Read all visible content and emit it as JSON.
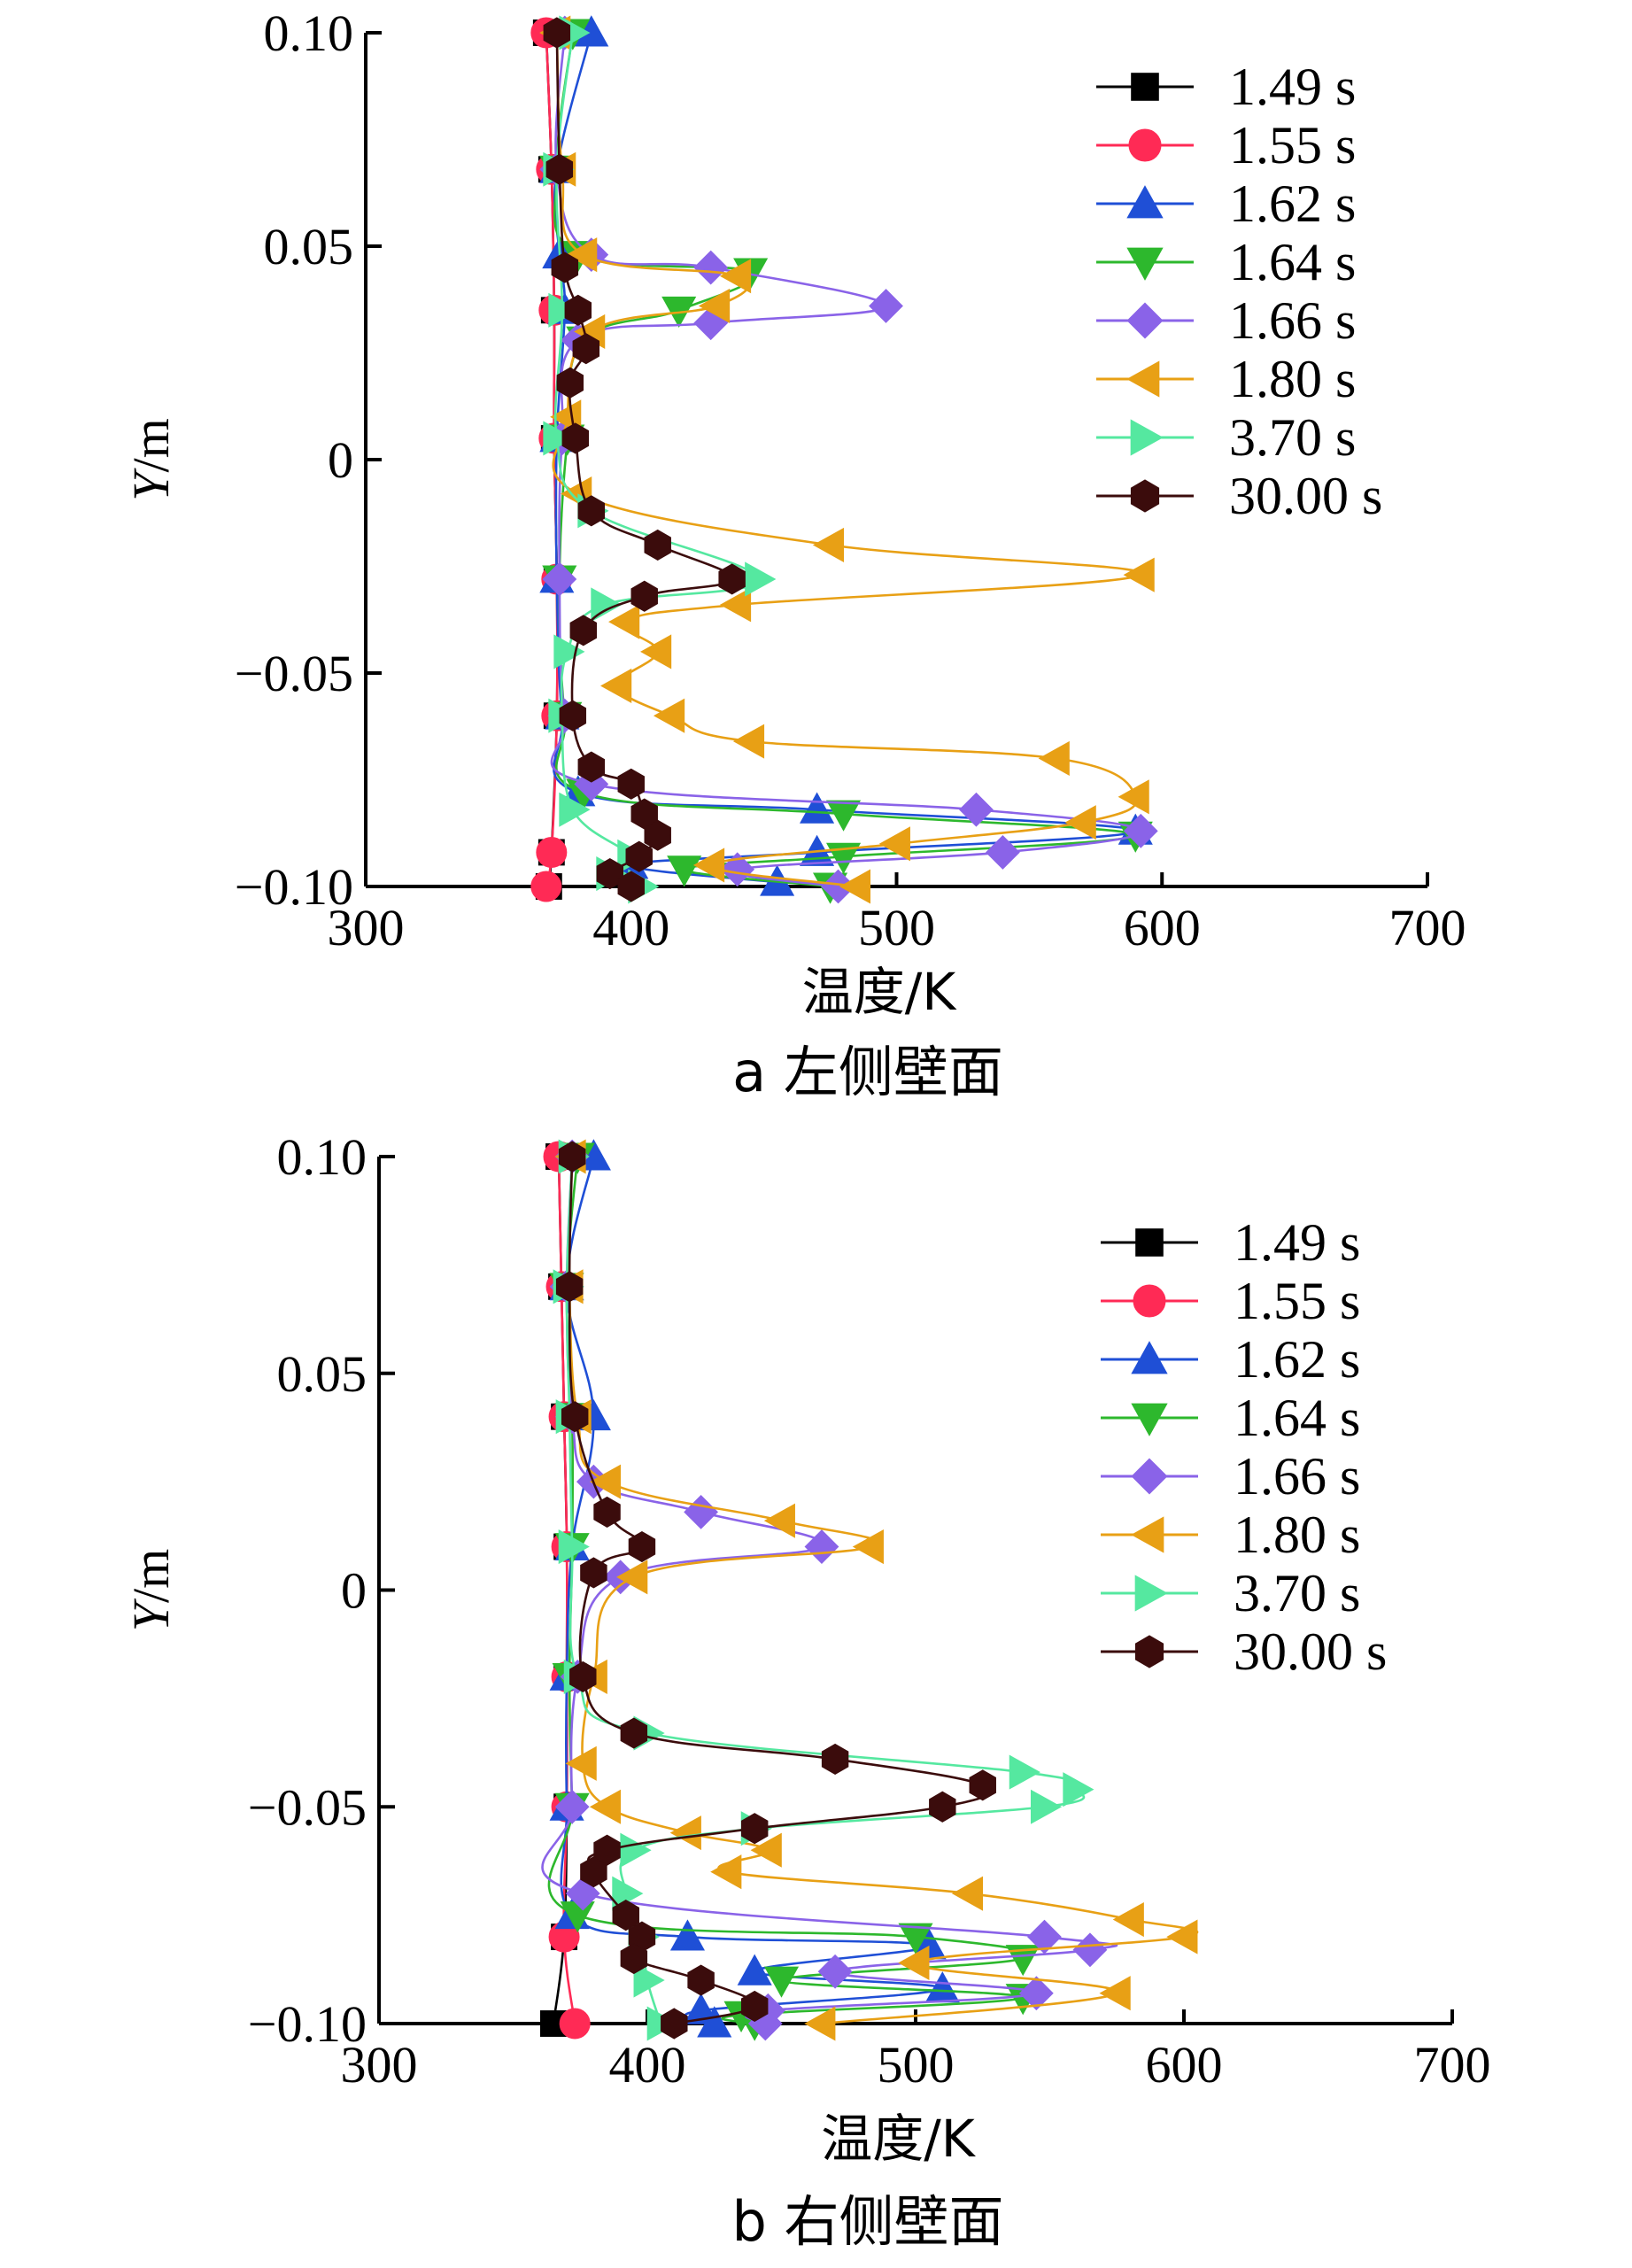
{
  "chart_data": [
    {
      "type": "line",
      "caption": "a  左侧壁面",
      "xlabel": "温度/K",
      "ylabel": "Y/m",
      "xlim": [
        300,
        700
      ],
      "ylim": [
        -0.1,
        0.1
      ],
      "xticks": [
        "300",
        "400",
        "500",
        "600",
        "700"
      ],
      "yticks": [
        "−0.10",
        "−0.05",
        "0",
        "0.05",
        "0.10"
      ],
      "legend_position": "top-right",
      "series": [
        {
          "name": "1.49 s",
          "color": "#000000",
          "marker": "square",
          "points": [
            [
              368,
              0.1
            ],
            [
              370,
              0.068
            ],
            [
              371,
              0.035
            ],
            [
              371,
              0.005
            ],
            [
              372,
              -0.028
            ],
            [
              372,
              -0.06
            ],
            [
              370,
              -0.092
            ],
            [
              369,
              -0.1
            ]
          ]
        },
        {
          "name": "1.55 s",
          "color": "#ff2a55",
          "marker": "circle",
          "points": [
            [
              368,
              0.1
            ],
            [
              370,
              0.068
            ],
            [
              371,
              0.035
            ],
            [
              371,
              0.005
            ],
            [
              372,
              -0.028
            ],
            [
              372,
              -0.06
            ],
            [
              370,
              -0.092
            ],
            [
              368,
              -0.1
            ]
          ]
        },
        {
          "name": "1.62 s",
          "color": "#1f4fd6",
          "marker": "triangle-up",
          "points": [
            [
              385,
              0.1
            ],
            [
              372,
              0.068
            ],
            [
              373,
              0.048
            ],
            [
              375,
              0.035
            ],
            [
              372,
              0.005
            ],
            [
              372,
              -0.028
            ],
            [
              374,
              -0.06
            ],
            [
              380,
              -0.078
            ],
            [
              470,
              -0.082
            ],
            [
              590,
              -0.087
            ],
            [
              470,
              -0.092
            ],
            [
              400,
              -0.095
            ],
            [
              455,
              -0.099
            ]
          ]
        },
        {
          "name": "1.64 s",
          "color": "#2db82d",
          "marker": "triangle-down",
          "points": [
            [
              378,
              0.1
            ],
            [
              372,
              0.068
            ],
            [
              380,
              0.048
            ],
            [
              445,
              0.044
            ],
            [
              418,
              0.035
            ],
            [
              382,
              0.028
            ],
            [
              376,
              0.005
            ],
            [
              373,
              -0.028
            ],
            [
              375,
              -0.06
            ],
            [
              382,
              -0.078
            ],
            [
              480,
              -0.083
            ],
            [
              590,
              -0.088
            ],
            [
              480,
              -0.093
            ],
            [
              420,
              -0.096
            ],
            [
              475,
              -0.1
            ]
          ]
        },
        {
          "name": "1.66 s",
          "color": "#8a63e8",
          "marker": "diamond",
          "points": [
            [
              375,
              0.1
            ],
            [
              372,
              0.068
            ],
            [
              385,
              0.048
            ],
            [
              430,
              0.045
            ],
            [
              496,
              0.036
            ],
            [
              430,
              0.032
            ],
            [
              380,
              0.028
            ],
            [
              374,
              0.005
            ],
            [
              373,
              -0.028
            ],
            [
              375,
              -0.06
            ],
            [
              385,
              -0.076
            ],
            [
              530,
              -0.082
            ],
            [
              592,
              -0.087
            ],
            [
              540,
              -0.092
            ],
            [
              440,
              -0.096
            ],
            [
              478,
              -0.1
            ]
          ]
        },
        {
          "name": "1.80 s",
          "color": "#e8a015",
          "marker": "triangle-left",
          "points": [
            [
              372,
              0.1
            ],
            [
              374,
              0.068
            ],
            [
              382,
              0.048
            ],
            [
              440,
              0.043
            ],
            [
              432,
              0.036
            ],
            [
              385,
              0.03
            ],
            [
              376,
              0.01
            ],
            [
              380,
              -0.008
            ],
            [
              475,
              -0.02
            ],
            [
              592,
              -0.027
            ],
            [
              440,
              -0.034
            ],
            [
              398,
              -0.038
            ],
            [
              410,
              -0.045
            ],
            [
              395,
              -0.053
            ],
            [
              415,
              -0.06
            ],
            [
              445,
              -0.066
            ],
            [
              560,
              -0.07
            ],
            [
              590,
              -0.079
            ],
            [
              570,
              -0.085
            ],
            [
              500,
              -0.09
            ],
            [
              430,
              -0.095
            ],
            [
              485,
              -0.1
            ]
          ]
        },
        {
          "name": "3.70 s",
          "color": "#55e8a0",
          "marker": "triangle-right",
          "points": [
            [
              378,
              0.1
            ],
            [
              372,
              0.068
            ],
            [
              374,
              0.035
            ],
            [
              372,
              0.005
            ],
            [
              385,
              -0.012
            ],
            [
              448,
              -0.028
            ],
            [
              390,
              -0.034
            ],
            [
              376,
              -0.045
            ],
            [
              374,
              -0.06
            ],
            [
              378,
              -0.082
            ],
            [
              400,
              -0.093
            ],
            [
              392,
              -0.097
            ],
            [
              404,
              -0.1
            ]
          ]
        },
        {
          "name": "30.00 s",
          "color": "#3b0c0c",
          "marker": "hexagon",
          "points": [
            [
              372,
              0.1
            ],
            [
              373,
              0.068
            ],
            [
              375,
              0.045
            ],
            [
              380,
              0.035
            ],
            [
              383,
              0.026
            ],
            [
              377,
              0.018
            ],
            [
              379,
              0.005
            ],
            [
              385,
              -0.012
            ],
            [
              410,
              -0.02
            ],
            [
              438,
              -0.028
            ],
            [
              405,
              -0.032
            ],
            [
              382,
              -0.04
            ],
            [
              378,
              -0.06
            ],
            [
              385,
              -0.072
            ],
            [
              400,
              -0.076
            ],
            [
              405,
              -0.083
            ],
            [
              410,
              -0.088
            ],
            [
              403,
              -0.093
            ],
            [
              392,
              -0.097
            ],
            [
              400,
              -0.1
            ]
          ]
        }
      ]
    },
    {
      "type": "line",
      "caption": "b  右侧壁面",
      "xlabel": "温度/K",
      "ylabel": "Y/m",
      "xlim": [
        300,
        700
      ],
      "ylim": [
        -0.1,
        0.1
      ],
      "xticks": [
        "300",
        "400",
        "500",
        "600",
        "700"
      ],
      "yticks": [
        "−0.10",
        "−0.05",
        "0",
        "0.05",
        "0.10"
      ],
      "legend_position": "top-right",
      "series": [
        {
          "name": "1.49 s",
          "color": "#000000",
          "marker": "square",
          "points": [
            [
              367,
              0.1
            ],
            [
              368,
              0.07
            ],
            [
              369,
              0.04
            ],
            [
              370,
              0.01
            ],
            [
              370,
              -0.02
            ],
            [
              370,
              -0.05
            ],
            [
              369,
              -0.08
            ],
            [
              365,
              -0.1
            ]
          ]
        },
        {
          "name": "1.55 s",
          "color": "#ff2a55",
          "marker": "circle",
          "points": [
            [
              367,
              0.1
            ],
            [
              368,
              0.07
            ],
            [
              369,
              0.04
            ],
            [
              370,
              0.01
            ],
            [
              370,
              -0.02
            ],
            [
              370,
              -0.05
            ],
            [
              369,
              -0.08
            ],
            [
              373,
              -0.1
            ]
          ]
        },
        {
          "name": "1.62 s",
          "color": "#1f4fd6",
          "marker": "triangle-up",
          "points": [
            [
              380,
              0.1
            ],
            [
              370,
              0.07
            ],
            [
              380,
              0.04
            ],
            [
              372,
              0.01
            ],
            [
              370,
              -0.02
            ],
            [
              370,
              -0.05
            ],
            [
              372,
              -0.075
            ],
            [
              415,
              -0.08
            ],
            [
              505,
              -0.082
            ],
            [
              440,
              -0.088
            ],
            [
              510,
              -0.092
            ],
            [
              420,
              -0.097
            ],
            [
              425,
              -0.1
            ]
          ]
        },
        {
          "name": "1.64 s",
          "color": "#2db82d",
          "marker": "triangle-down",
          "points": [
            [
              374,
              0.1
            ],
            [
              370,
              0.07
            ],
            [
              372,
              0.04
            ],
            [
              372,
              0.01
            ],
            [
              371,
              -0.02
            ],
            [
              372,
              -0.05
            ],
            [
              374,
              -0.075
            ],
            [
              500,
              -0.08
            ],
            [
              540,
              -0.085
            ],
            [
              450,
              -0.09
            ],
            [
              540,
              -0.094
            ],
            [
              435,
              -0.098
            ],
            [
              440,
              -0.1
            ]
          ]
        },
        {
          "name": "1.66 s",
          "color": "#8a63e8",
          "marker": "diamond",
          "points": [
            [
              372,
              0.1
            ],
            [
              370,
              0.07
            ],
            [
              372,
              0.04
            ],
            [
              380,
              0.025
            ],
            [
              420,
              0.018
            ],
            [
              465,
              0.01
            ],
            [
              390,
              0.003
            ],
            [
              374,
              -0.02
            ],
            [
              372,
              -0.05
            ],
            [
              376,
              -0.07
            ],
            [
              548,
              -0.08
            ],
            [
              565,
              -0.083
            ],
            [
              470,
              -0.088
            ],
            [
              545,
              -0.093
            ],
            [
              445,
              -0.097
            ],
            [
              444,
              -0.1
            ]
          ]
        },
        {
          "name": "1.80 s",
          "color": "#e8a015",
          "marker": "triangle-left",
          "points": [
            [
              372,
              0.1
            ],
            [
              371,
              0.07
            ],
            [
              374,
              0.04
            ],
            [
              385,
              0.025
            ],
            [
              450,
              0.016
            ],
            [
              483,
              0.01
            ],
            [
              395,
              0.003
            ],
            [
              380,
              -0.02
            ],
            [
              376,
              -0.04
            ],
            [
              385,
              -0.05
            ],
            [
              415,
              -0.056
            ],
            [
              445,
              -0.06
            ],
            [
              430,
              -0.065
            ],
            [
              520,
              -0.07
            ],
            [
              580,
              -0.076
            ],
            [
              600,
              -0.08
            ],
            [
              500,
              -0.086
            ],
            [
              575,
              -0.093
            ],
            [
              465,
              -0.1
            ]
          ]
        },
        {
          "name": "3.70 s",
          "color": "#55e8a0",
          "marker": "triangle-right",
          "points": [
            [
              372,
              0.1
            ],
            [
              370,
              0.07
            ],
            [
              371,
              0.04
            ],
            [
              372,
              0.01
            ],
            [
              374,
              -0.02
            ],
            [
              400,
              -0.033
            ],
            [
              540,
              -0.042
            ],
            [
              560,
              -0.046
            ],
            [
              548,
              -0.05
            ],
            [
              440,
              -0.055
            ],
            [
              395,
              -0.06
            ],
            [
              392,
              -0.07
            ],
            [
              398,
              -0.08
            ],
            [
              400,
              -0.09
            ],
            [
              405,
              -0.1
            ]
          ]
        },
        {
          "name": "30.00 s",
          "color": "#3b0c0c",
          "marker": "hexagon",
          "points": [
            [
              372,
              0.1
            ],
            [
              371,
              0.07
            ],
            [
              373,
              0.04
            ],
            [
              385,
              0.018
            ],
            [
              398,
              0.01
            ],
            [
              380,
              0.004
            ],
            [
              376,
              -0.02
            ],
            [
              395,
              -0.033
            ],
            [
              470,
              -0.039
            ],
            [
              525,
              -0.045
            ],
            [
              510,
              -0.05
            ],
            [
              440,
              -0.055
            ],
            [
              385,
              -0.06
            ],
            [
              380,
              -0.065
            ],
            [
              392,
              -0.075
            ],
            [
              398,
              -0.08
            ],
            [
              395,
              -0.085
            ],
            [
              420,
              -0.09
            ],
            [
              440,
              -0.096
            ],
            [
              410,
              -0.1
            ]
          ]
        }
      ]
    }
  ]
}
